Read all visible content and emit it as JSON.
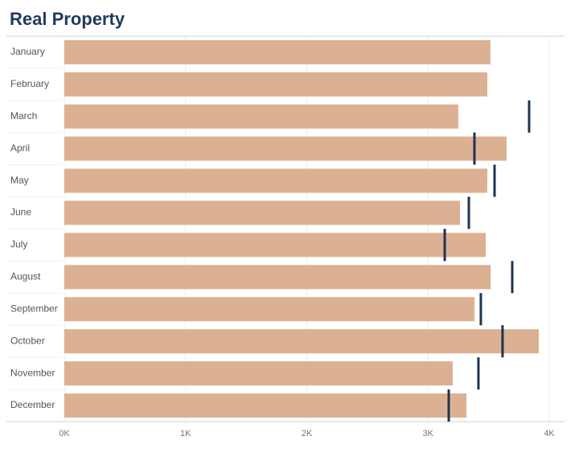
{
  "chart_data": {
    "type": "bar",
    "title": "Real Property",
    "categories": [
      "January",
      "February",
      "March",
      "April",
      "May",
      "June",
      "July",
      "August",
      "September",
      "October",
      "November",
      "December"
    ],
    "series": [
      {
        "type": "bar",
        "color": "#dcb092",
        "values": [
          3515,
          3489,
          3250,
          3648,
          3489,
          3264,
          3476,
          3516,
          3383,
          3914,
          3204,
          3317
        ]
      },
      {
        "type": "tick",
        "color": "#1f3352",
        "values": [
          null,
          null,
          3834,
          3383,
          3549,
          3337,
          3138,
          3695,
          3436,
          3615,
          3416,
          3171
        ]
      }
    ],
    "xlim": [
      0,
      4100
    ],
    "xticks": [
      {
        "value": 0,
        "label": "0K"
      },
      {
        "value": 1000,
        "label": "1K"
      },
      {
        "value": 2000,
        "label": "2K"
      },
      {
        "value": 3000,
        "label": "3K"
      },
      {
        "value": 4000,
        "label": "4K"
      }
    ],
    "grid": true
  }
}
